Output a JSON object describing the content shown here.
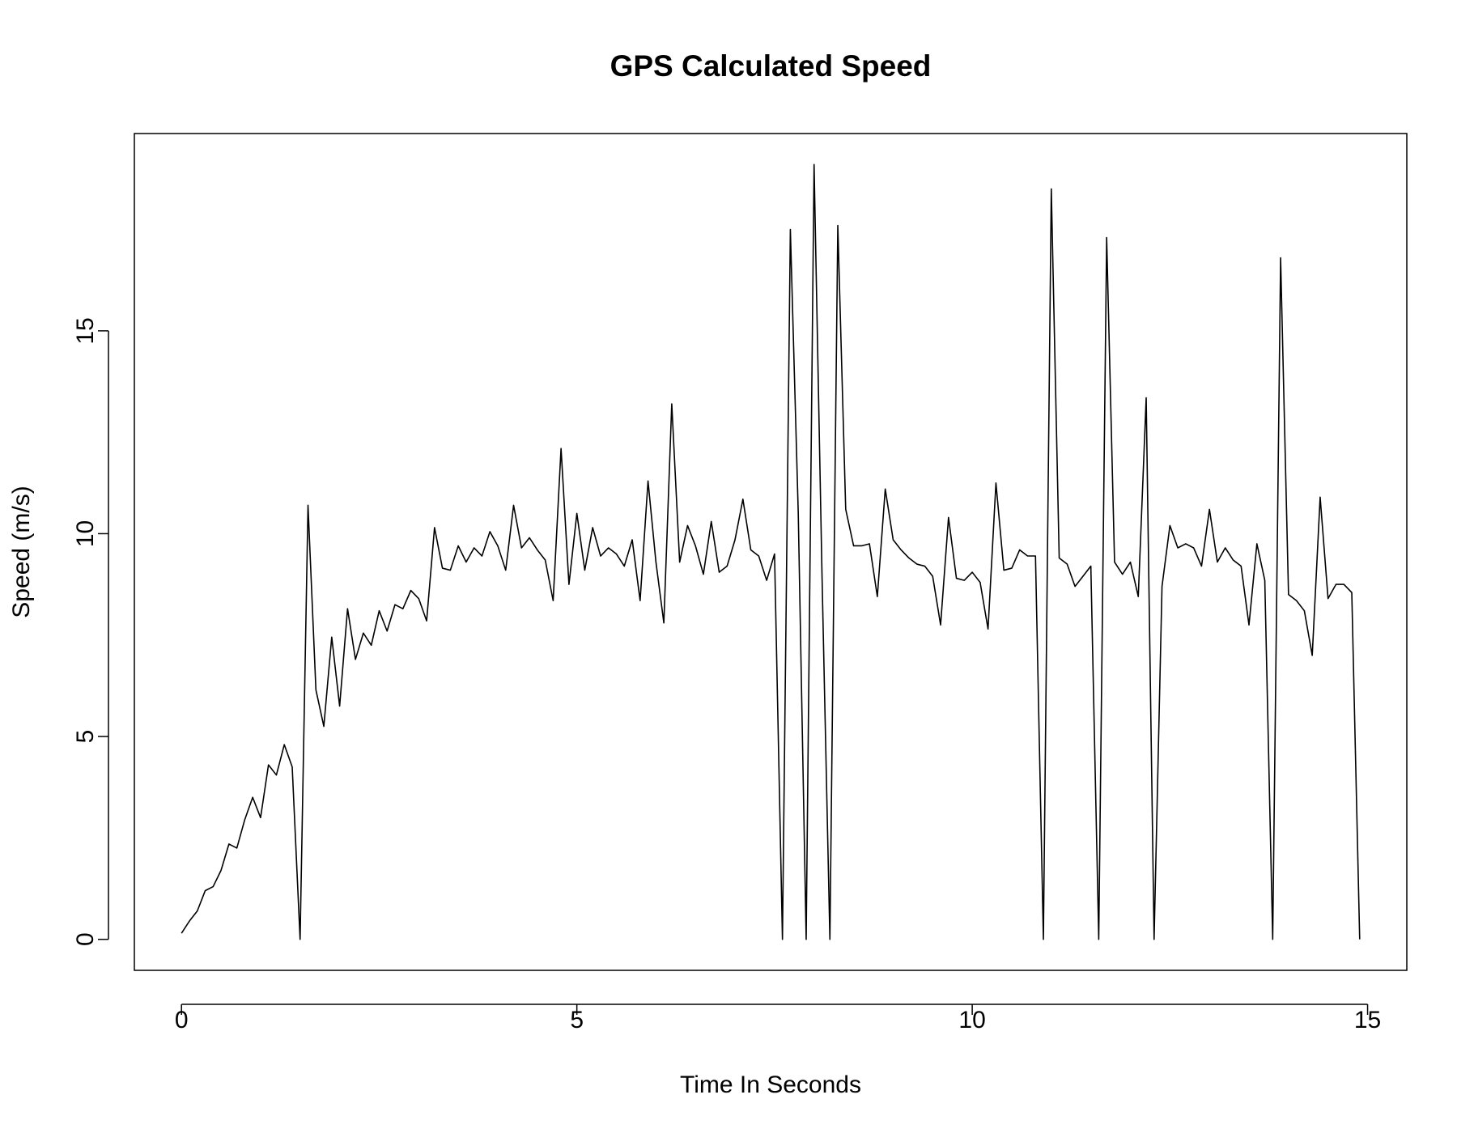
{
  "chart_data": {
    "type": "line",
    "title": "GPS Calculated Speed",
    "x_label": "Time In Seconds",
    "y_label": "Speed (m/s)",
    "color": "#000000",
    "x": [
      0,
      0.1,
      0.2,
      0.3,
      0.4,
      0.5,
      0.6,
      0.7,
      0.8,
      0.9,
      1,
      1.1,
      1.2,
      1.3,
      1.4,
      1.5,
      1.6,
      1.7,
      1.8,
      1.9,
      2,
      2.1,
      2.2,
      2.3,
      2.4,
      2.5,
      2.6,
      2.7,
      2.8,
      2.9,
      3,
      3.1,
      3.2,
      3.3,
      3.4,
      3.5,
      3.6,
      3.7,
      3.8,
      3.9,
      4,
      4.1,
      4.2,
      4.3,
      4.4,
      4.5,
      4.6,
      4.7,
      4.8,
      4.9,
      5,
      5.1,
      5.2,
      5.3,
      5.4,
      5.5,
      5.6,
      5.7,
      5.8,
      5.9,
      6,
      6.1,
      6.2,
      6.3,
      6.4,
      6.5,
      6.6,
      6.7,
      6.8,
      6.9,
      7,
      7.1,
      7.2,
      7.3,
      7.4,
      7.5,
      7.6,
      7.7,
      7.8,
      7.9,
      8,
      8.1,
      8.2,
      8.3,
      8.4,
      8.5,
      8.6,
      8.7,
      8.8,
      8.9,
      9,
      9.1,
      9.2,
      9.3,
      9.4,
      9.5,
      9.6,
      9.7,
      9.8,
      9.9,
      10,
      10.1,
      10.2,
      10.3,
      10.4,
      10.5,
      10.6,
      10.7,
      10.8,
      10.9,
      11,
      11.1,
      11.2,
      11.3,
      11.4,
      11.5,
      11.6,
      11.7,
      11.8,
      11.9,
      12,
      12.1,
      12.2,
      12.3,
      12.4,
      12.5,
      12.6,
      12.7,
      12.8,
      12.9,
      13,
      13.1,
      13.2,
      13.3,
      13.4,
      13.5,
      13.6,
      13.7,
      13.8,
      13.9,
      14,
      14.1,
      14.2,
      14.3,
      14.4,
      14.5,
      14.6,
      14.7,
      14.8,
      14.9
    ],
    "values": [
      0.15,
      0.45,
      0.7,
      1.2,
      1.3,
      1.7,
      2.35,
      2.25,
      2.95,
      3.5,
      3.0,
      4.3,
      4.05,
      4.8,
      4.25,
      0,
      10.7,
      6.15,
      5.25,
      7.45,
      5.75,
      8.15,
      6.9,
      7.55,
      7.25,
      8.1,
      7.6,
      8.25,
      8.15,
      8.6,
      8.4,
      7.85,
      10.15,
      9.15,
      9.1,
      9.7,
      9.3,
      9.65,
      9.45,
      10.05,
      9.7,
      9.1,
      10.7,
      9.65,
      9.9,
      9.6,
      9.35,
      8.35,
      12.1,
      8.75,
      10.5,
      9.1,
      10.15,
      9.45,
      9.65,
      9.5,
      9.2,
      9.85,
      8.35,
      11.3,
      9.3,
      7.8,
      13.2,
      9.3,
      10.2,
      9.7,
      9.0,
      10.3,
      9.05,
      9.2,
      9.85,
      10.85,
      9.6,
      9.45,
      8.85,
      9.5,
      0,
      17.5,
      10.5,
      0,
      19.1,
      9.0,
      0,
      17.6,
      10.6,
      9.7,
      9.7,
      9.75,
      8.45,
      11.1,
      9.85,
      9.6,
      9.4,
      9.25,
      9.2,
      8.95,
      7.75,
      10.4,
      8.9,
      8.85,
      9.05,
      8.8,
      7.65,
      11.25,
      9.1,
      9.15,
      9.6,
      9.45,
      9.45,
      0,
      18.5,
      9.4,
      9.25,
      8.7,
      8.95,
      9.2,
      0,
      17.3,
      9.3,
      9.0,
      9.3,
      8.45,
      13.35,
      0,
      8.7,
      10.2,
      9.65,
      9.75,
      9.65,
      9.2,
      10.6,
      9.3,
      9.65,
      9.35,
      9.2,
      7.75,
      9.75,
      8.85,
      0,
      16.8,
      8.5,
      8.35,
      8.1,
      7.0,
      10.9,
      8.4,
      8.75,
      8.75,
      8.55,
      0
    ],
    "xlim": [
      -0.596,
      15.496
    ],
    "ylim": [
      -0.764,
      19.864
    ],
    "xticks": [
      0,
      5,
      10,
      15
    ],
    "yticks": [
      0,
      5,
      10,
      15
    ]
  }
}
